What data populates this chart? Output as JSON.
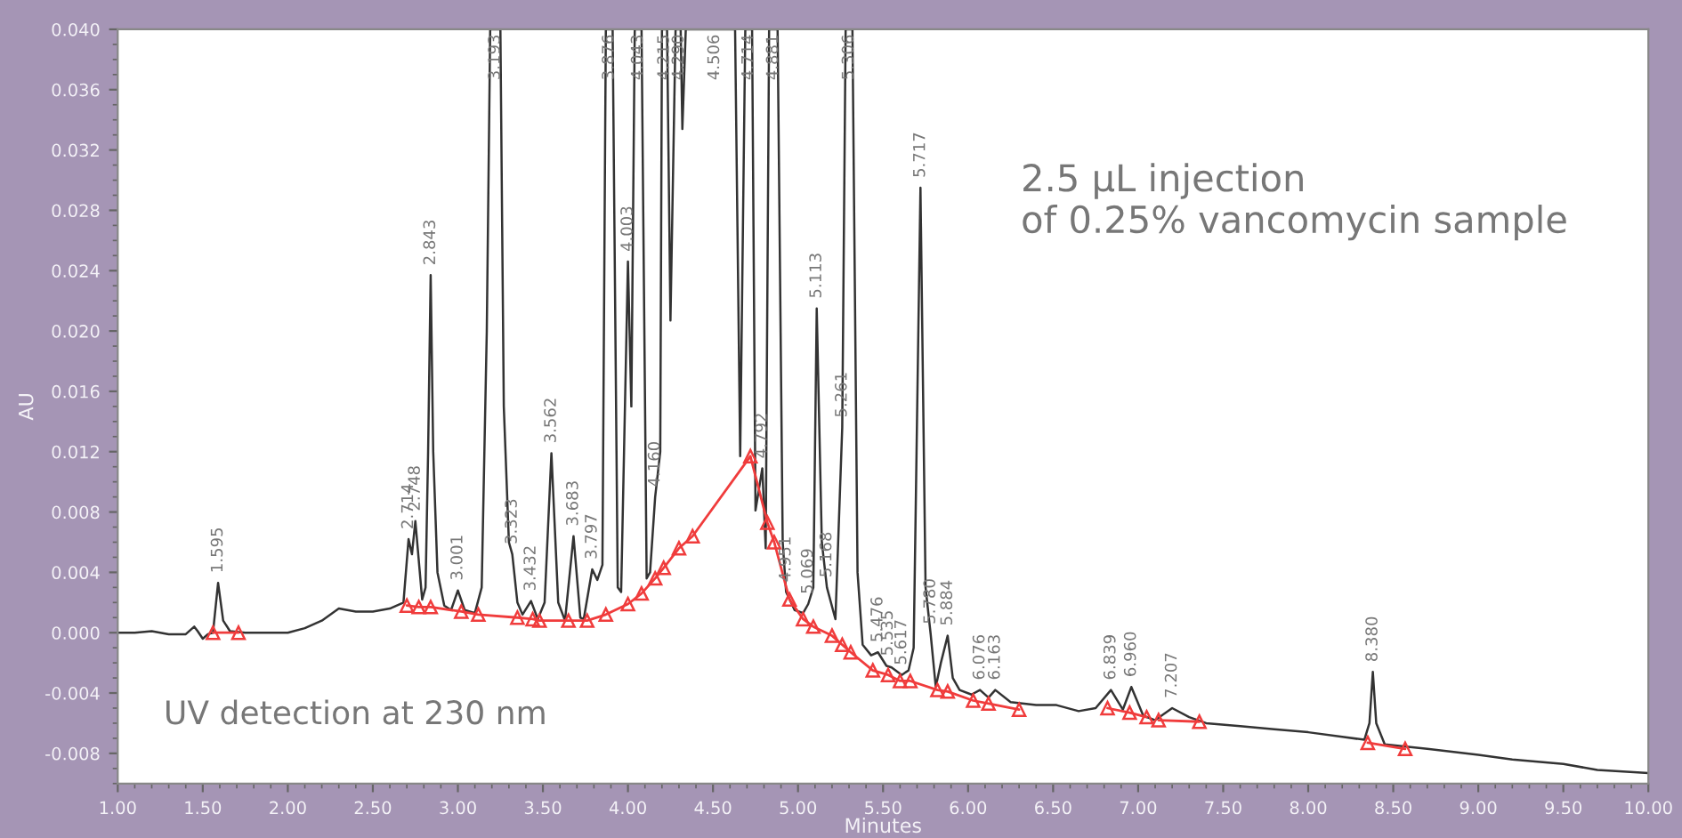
{
  "chart_data": {
    "type": "line",
    "xlabel": "Minutes",
    "ylabel": "AU",
    "xlim": [
      1.0,
      10.0
    ],
    "ylim": [
      -0.01,
      0.04
    ],
    "xticks": [
      {
        "value": 1.0,
        "label": "1.00"
      },
      {
        "value": 1.5,
        "label": "1.50"
      },
      {
        "value": 2.0,
        "label": "2.00"
      },
      {
        "value": 2.5,
        "label": "2.50"
      },
      {
        "value": 3.0,
        "label": "3.00"
      },
      {
        "value": 3.5,
        "label": "3.50"
      },
      {
        "value": 4.0,
        "label": "4.00"
      },
      {
        "value": 4.5,
        "label": "4.50"
      },
      {
        "value": 5.0,
        "label": "5.00"
      },
      {
        "value": 5.5,
        "label": "5.50"
      },
      {
        "value": 6.0,
        "label": "6.00"
      },
      {
        "value": 6.5,
        "label": "6.50"
      },
      {
        "value": 7.0,
        "label": "7.00"
      },
      {
        "value": 7.5,
        "label": "7.50"
      },
      {
        "value": 8.0,
        "label": "8.00"
      },
      {
        "value": 8.5,
        "label": "8.50"
      },
      {
        "value": 9.0,
        "label": "9.00"
      },
      {
        "value": 9.5,
        "label": "9.50"
      },
      {
        "value": 10.0,
        "label": "10.00"
      }
    ],
    "yticks": [
      {
        "value": -0.008,
        "label": "-0.008"
      },
      {
        "value": -0.004,
        "label": "-0.004"
      },
      {
        "value": 0.0,
        "label": "0.000"
      },
      {
        "value": 0.004,
        "label": "0.004"
      },
      {
        "value": 0.008,
        "label": "0.008"
      },
      {
        "value": 0.012,
        "label": "0.012"
      },
      {
        "value": 0.016,
        "label": "0.016"
      },
      {
        "value": 0.02,
        "label": "0.020"
      },
      {
        "value": 0.024,
        "label": "0.024"
      },
      {
        "value": 0.028,
        "label": "0.028"
      },
      {
        "value": 0.032,
        "label": "0.032"
      },
      {
        "value": 0.036,
        "label": "0.036"
      },
      {
        "value": 0.04,
        "label": "0.040"
      }
    ],
    "grid": false,
    "legend": false,
    "series": [
      {
        "color": "#333333",
        "marker": "none",
        "x": [
          1.0,
          1.1,
          1.2,
          1.3,
          1.4,
          1.45,
          1.47,
          1.5,
          1.53,
          1.56,
          1.59,
          1.62,
          1.66,
          1.75,
          1.9,
          2.0,
          2.1,
          2.2,
          2.3,
          2.4,
          2.5,
          2.6,
          2.68,
          2.71,
          2.73,
          2.75,
          2.79,
          2.81,
          2.825,
          2.84,
          2.855,
          2.88,
          2.92,
          2.96,
          3.0,
          3.04,
          3.1,
          3.14,
          3.17,
          3.19,
          3.25,
          3.27,
          3.3,
          3.32,
          3.35,
          3.38,
          3.43,
          3.47,
          3.51,
          3.55,
          3.59,
          3.63,
          3.68,
          3.72,
          3.74,
          3.79,
          3.82,
          3.85,
          3.87,
          3.91,
          3.94,
          3.96,
          4.0,
          4.02,
          4.04,
          4.08,
          4.11,
          4.13,
          4.16,
          4.19,
          4.2,
          4.23,
          4.25,
          4.28,
          4.31,
          4.32,
          4.34,
          4.63,
          4.66,
          4.69,
          4.73,
          4.75,
          4.79,
          4.81,
          4.83,
          4.88,
          4.91,
          4.93,
          4.98,
          5.03,
          5.06,
          5.09,
          5.11,
          5.14,
          5.17,
          5.22,
          5.26,
          5.28,
          5.32,
          5.35,
          5.38,
          5.43,
          5.47,
          5.52,
          5.55,
          5.61,
          5.65,
          5.68,
          5.72,
          5.75,
          5.78,
          5.81,
          5.84,
          5.88,
          5.91,
          5.95,
          6.02,
          6.07,
          6.12,
          6.16,
          6.25,
          6.4,
          6.52,
          6.65,
          6.75,
          6.84,
          6.91,
          6.96,
          7.03,
          7.1,
          7.2,
          7.3,
          7.4,
          7.6,
          7.8,
          8.0,
          8.2,
          8.33,
          8.36,
          8.38,
          8.4,
          8.45,
          8.7,
          9.0,
          9.2,
          9.5,
          9.7,
          10.0
        ],
        "values": [
          0.0,
          0.0,
          0.0001,
          -0.0001,
          -0.0001,
          0.0004,
          0.0001,
          -0.0004,
          -0.0001,
          0.0,
          0.0033,
          0.0008,
          0.0001,
          0.0,
          0.0,
          0.0,
          0.0003,
          0.0008,
          0.0016,
          0.0014,
          0.0014,
          0.0016,
          0.002,
          0.0062,
          0.0052,
          0.0074,
          0.0022,
          0.003,
          0.012,
          0.0237,
          0.012,
          0.004,
          0.0018,
          0.0015,
          0.0028,
          0.0015,
          0.0013,
          0.003,
          0.02,
          0.04,
          0.04,
          0.015,
          0.006,
          0.0052,
          0.002,
          0.0012,
          0.0021,
          0.0009,
          0.002,
          0.0119,
          0.002,
          0.0008,
          0.0064,
          0.001,
          0.0009,
          0.0042,
          0.0035,
          0.0045,
          0.04,
          0.04,
          0.003,
          0.0027,
          0.0246,
          0.015,
          0.04,
          0.04,
          0.0036,
          0.004,
          0.009,
          0.012,
          0.04,
          0.04,
          0.0207,
          0.04,
          0.04,
          0.0334,
          0.04,
          0.04,
          0.0117,
          0.04,
          0.04,
          0.0081,
          0.0109,
          0.0056,
          0.04,
          0.04,
          0.006,
          0.0027,
          0.0015,
          0.0013,
          0.0019,
          0.003,
          0.0215,
          0.006,
          0.003,
          0.0009,
          0.0136,
          0.04,
          0.04,
          0.004,
          -0.0008,
          -0.0015,
          -0.0013,
          -0.0022,
          -0.0023,
          -0.0028,
          -0.0025,
          -0.001,
          0.0295,
          0.003,
          -0.0001,
          -0.0036,
          -0.002,
          -0.0002,
          -0.003,
          -0.0038,
          -0.0041,
          -0.0038,
          -0.0043,
          -0.0038,
          -0.0046,
          -0.0048,
          -0.0048,
          -0.0052,
          -0.005,
          -0.0038,
          -0.0051,
          -0.0036,
          -0.0055,
          -0.0058,
          -0.005,
          -0.0056,
          -0.006,
          -0.0062,
          -0.0064,
          -0.0066,
          -0.0069,
          -0.0071,
          -0.006,
          -0.0026,
          -0.006,
          -0.0074,
          -0.0077,
          -0.0081,
          -0.0084,
          -0.0087,
          -0.0091,
          -0.0093
        ]
      },
      {
        "color": "#f03c3c",
        "marker": "triangle",
        "x": [
          1.56,
          1.71,
          1.72,
          2.7,
          2.77,
          2.84,
          3.02,
          3.12,
          3.35,
          3.44,
          3.48,
          3.65,
          3.76,
          3.87,
          4.0,
          4.08,
          4.16,
          4.21,
          4.3,
          4.38,
          4.72,
          4.82,
          4.86,
          4.95,
          5.03,
          5.09,
          5.2,
          5.26,
          5.31,
          5.44,
          5.53,
          5.6,
          5.66,
          5.82,
          5.88,
          6.03,
          6.12,
          6.3,
          6.31,
          6.82,
          6.95,
          7.05,
          7.06,
          7.12,
          7.36,
          7.37,
          8.35,
          8.57
        ],
        "values": [
          0.0,
          0.0,
          null,
          0.0018,
          0.0017,
          0.0017,
          0.0014,
          0.0012,
          0.001,
          0.0009,
          0.0008,
          0.0008,
          0.0008,
          0.0012,
          0.0019,
          0.0026,
          0.0036,
          0.0043,
          0.0056,
          0.0064,
          0.0117,
          0.0073,
          0.006,
          0.0022,
          0.0009,
          0.0004,
          -0.0002,
          -0.0008,
          -0.0013,
          -0.0025,
          -0.0028,
          -0.0032,
          -0.0032,
          -0.0038,
          -0.0039,
          -0.0045,
          -0.0047,
          -0.0051,
          null,
          -0.005,
          -0.0053,
          -0.0056,
          null,
          -0.0058,
          -0.0059,
          null,
          -0.0073,
          -0.0077
        ]
      }
    ],
    "annotations": [
      "2.5 µL injection\nof 0.25% vancomycin sample",
      "UV detection at 230 nm",
      {
        "text": "1.595",
        "x": 1.59,
        "y": 0.0033
      },
      {
        "text": "2.714",
        "x": 2.71,
        "y": 0.0062
      },
      {
        "text": "2.748",
        "x": 2.75,
        "y": 0.0074
      },
      {
        "text": "2.843",
        "x": 2.84,
        "y": 0.0237
      },
      {
        "text": "3.001",
        "x": 3.0,
        "y": 0.0028
      },
      {
        "text": "3.193",
        "x": 3.22,
        "y": 0.04
      },
      {
        "text": "3.323",
        "x": 3.32,
        "y": 0.0052
      },
      {
        "text": "3.432",
        "x": 3.43,
        "y": 0.0021
      },
      {
        "text": "3.562",
        "x": 3.55,
        "y": 0.0119
      },
      {
        "text": "3.683",
        "x": 3.68,
        "y": 0.0064
      },
      {
        "text": "3.797",
        "x": 3.79,
        "y": 0.0042
      },
      {
        "text": "3.876",
        "x": 3.89,
        "y": 0.04
      },
      {
        "text": "4.003",
        "x": 4.0,
        "y": 0.0246
      },
      {
        "text": "4.043",
        "x": 4.06,
        "y": 0.04
      },
      {
        "text": "4.160",
        "x": 4.16,
        "y": 0.009
      },
      {
        "text": "4.215",
        "x": 4.215,
        "y": 0.04
      },
      {
        "text": "4.290",
        "x": 4.3,
        "y": 0.04
      },
      {
        "text": "4.506",
        "x": 4.51,
        "y": 0.04
      },
      {
        "text": "4.714",
        "x": 4.71,
        "y": 0.04
      },
      {
        "text": "4.792",
        "x": 4.79,
        "y": 0.0109
      },
      {
        "text": "4.881",
        "x": 4.855,
        "y": 0.04
      },
      {
        "text": "4.951",
        "x": 4.93,
        "y": 0.0027
      },
      {
        "text": "5.069",
        "x": 5.06,
        "y": 0.0019
      },
      {
        "text": "5.113",
        "x": 5.11,
        "y": 0.0215
      },
      {
        "text": "5.168",
        "x": 5.17,
        "y": 0.003
      },
      {
        "text": "5.261",
        "x": 5.26,
        "y": 0.0136
      },
      {
        "text": "5.306",
        "x": 5.3,
        "y": 0.04
      },
      {
        "text": "5.476",
        "x": 5.47,
        "y": -0.0013
      },
      {
        "text": "5.535",
        "x": 5.53,
        "y": -0.0022
      },
      {
        "text": "5.617",
        "x": 5.61,
        "y": -0.0028
      },
      {
        "text": "5.717",
        "x": 5.72,
        "y": 0.0295
      },
      {
        "text": "5.780",
        "x": 5.78,
        "y": -0.0001
      },
      {
        "text": "5.884",
        "x": 5.88,
        "y": -0.0002
      },
      {
        "text": "6.076",
        "x": 6.07,
        "y": -0.0038
      },
      {
        "text": "6.163",
        "x": 6.16,
        "y": -0.0038
      },
      {
        "text": "6.839",
        "x": 6.84,
        "y": -0.0038
      },
      {
        "text": "6.960",
        "x": 6.96,
        "y": -0.0036
      },
      {
        "text": "7.207",
        "x": 7.2,
        "y": -0.005
      },
      {
        "text": "8.380",
        "x": 8.38,
        "y": -0.0026
      }
    ]
  }
}
